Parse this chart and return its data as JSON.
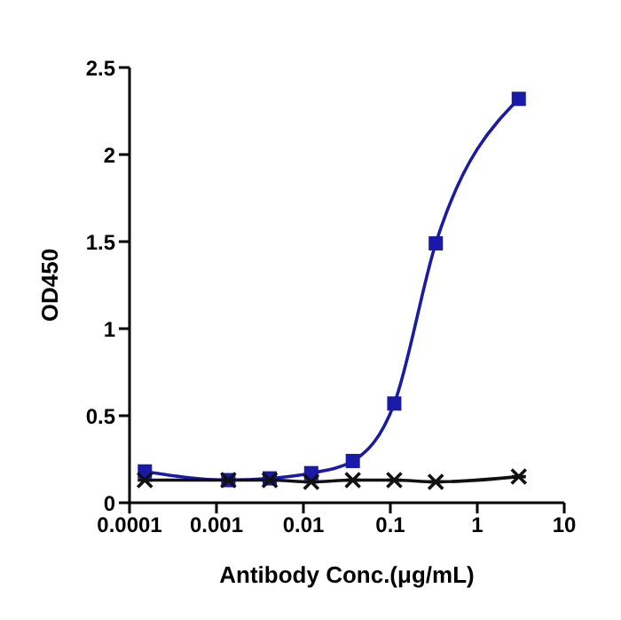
{
  "chart_data": {
    "type": "line",
    "xlabel": "Antibody Conc.(μg/mL)",
    "ylabel": "OD450",
    "log": "x",
    "xlim": [
      0.0001,
      10
    ],
    "xticks": [
      0.0001,
      0.001,
      0.01,
      0.1,
      1,
      10
    ],
    "ylim": [
      0,
      2.5
    ],
    "yticks": [
      0,
      0.5,
      1,
      1.5,
      2,
      2.5
    ],
    "x": [
      0.00015,
      0.00137,
      0.0041,
      0.0123,
      0.037,
      0.111,
      0.333,
      3
    ],
    "series": [
      {
        "color": "#1a1aa8",
        "values": [
          0.18,
          0.13,
          0.14,
          0.17,
          0.24,
          0.57,
          1.49,
          2.32
        ],
        "marker": "square"
      },
      {
        "color": "#111111",
        "values": [
          0.13,
          0.13,
          0.13,
          0.12,
          0.13,
          0.13,
          0.12,
          0.15
        ],
        "marker": "cross"
      }
    ]
  }
}
